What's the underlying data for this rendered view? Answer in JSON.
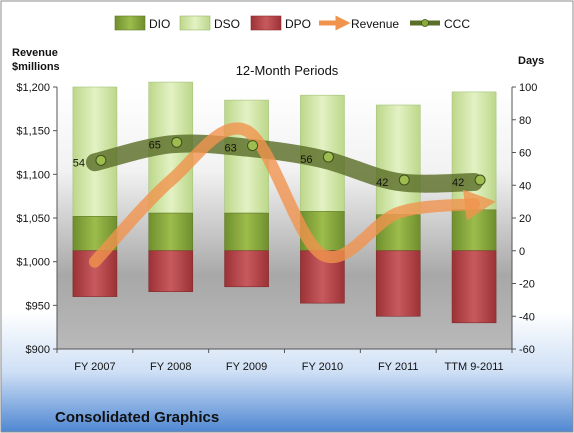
{
  "chart_data": {
    "type": "bar",
    "title": "12-Month Periods",
    "company": "Consolidated Graphics",
    "categories": [
      "FY 2007",
      "FY 2008",
      "FY 2009",
      "FY 2010",
      "FY 2011",
      "TTM 9-2011"
    ],
    "left_axis": {
      "label_line1": "Revenue",
      "label_line2": "$millions",
      "range": [
        900,
        1200
      ],
      "ticks": [
        900,
        950,
        1000,
        1050,
        1100,
        1150,
        1200
      ],
      "tick_labels": [
        "$900",
        "$950",
        "$1,000",
        "$1,050",
        "$1,100",
        "$1,150",
        "$1,200"
      ]
    },
    "right_axis": {
      "label": "Days",
      "range": [
        -60,
        100
      ],
      "ticks": [
        -60,
        -40,
        -20,
        0,
        20,
        40,
        60,
        80,
        100
      ],
      "tick_labels": [
        "-60",
        "-40",
        "-20",
        "0",
        "20",
        "40",
        "60",
        "80",
        "100"
      ]
    },
    "series": [
      {
        "name": "DIO",
        "axis": "right",
        "kind": "stacked-bar",
        "color": "#8aab3c",
        "values": [
          21,
          23,
          23,
          24,
          22,
          25
        ]
      },
      {
        "name": "DSO",
        "axis": "right",
        "kind": "stacked-bar",
        "color": "#d3e9a3",
        "values": [
          79,
          80,
          69,
          71,
          67,
          72
        ]
      },
      {
        "name": "DPO",
        "axis": "right",
        "kind": "negative-bar",
        "color": "#b9474b",
        "values": [
          -28,
          -25,
          -22,
          -32,
          -40,
          -44
        ]
      },
      {
        "name": "Revenue",
        "axis": "left",
        "kind": "line",
        "color": "#f0944d",
        "values": [
          1000,
          1093,
          1150,
          1008,
          1056,
          1066
        ]
      },
      {
        "name": "CCC",
        "axis": "right",
        "kind": "line",
        "color": "#5b6f2a",
        "values": [
          54,
          65,
          63,
          56,
          42,
          42
        ]
      }
    ],
    "data_labels": {
      "CCC": [
        "54",
        "65",
        "63",
        "56",
        "42",
        "42"
      ]
    },
    "legend_position": "top"
  }
}
